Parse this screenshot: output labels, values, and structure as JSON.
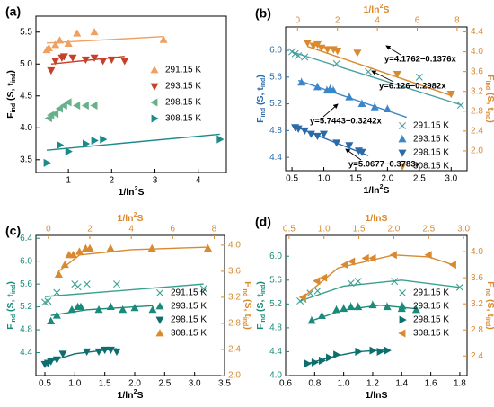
{
  "chart_data": [
    {
      "type": "scatter",
      "label": "(a)",
      "xlabel": [
        "1/ln",
        "2",
        "S"
      ],
      "ylabel": [
        "F",
        "ind",
        " (S, t",
        "ind",
        ")"
      ],
      "xlim": [
        0.25,
        4.65
      ],
      "xticks": [
        1,
        2,
        3,
        4
      ],
      "ylim": [
        3.3,
        5.75
      ],
      "yticks": [
        3.5,
        {
          "value": 4,
          "label": "4.0"
        },
        4.5,
        {
          "value": 5,
          "label": "5.0"
        },
        5.5
      ],
      "ycolor": "#000000",
      "legend": "upper right",
      "series": [
        {
          "name": "291.15 K",
          "color": "#f0a060",
          "marker": "triangle-up",
          "x": [
            0.5,
            0.55,
            0.7,
            0.8,
            1.0,
            1.2,
            1.6,
            3.2
          ],
          "values": [
            5.22,
            5.25,
            5.3,
            5.37,
            5.32,
            5.48,
            5.5,
            5.38
          ],
          "fit_x": [
            0.5,
            3.2
          ],
          "fit_y": [
            5.33,
            5.43
          ]
        },
        {
          "name": "293.15 K",
          "color": "#c8402a",
          "marker": "triangle-down",
          "x": [
            0.6,
            0.7,
            0.85,
            0.9,
            1.1,
            1.4,
            1.6,
            1.8,
            2.0,
            2.3
          ],
          "values": [
            4.9,
            5.05,
            5.1,
            5.12,
            5.1,
            5.07,
            5.1,
            5.05,
            5.07,
            5.05
          ],
          "fit_x": [
            0.6,
            2.3
          ],
          "fit_y": [
            5.0,
            5.12
          ]
        },
        {
          "name": "298.15 K",
          "color": "#66b08a",
          "marker": "triangle-left",
          "x": [
            0.55,
            0.6,
            0.7,
            0.8,
            0.9,
            1.0,
            1.2,
            1.4,
            1.6
          ],
          "values": [
            4.15,
            4.2,
            4.22,
            4.3,
            4.35,
            4.4,
            4.35,
            4.35,
            4.35
          ]
        },
        {
          "name": "308.15 K",
          "color": "#1a8a8a",
          "marker": "triangle-right",
          "x": [
            0.5,
            0.8,
            1.0,
            1.4,
            1.6,
            1.8,
            4.5
          ],
          "values": [
            3.45,
            3.73,
            3.63,
            3.75,
            3.8,
            3.82,
            3.82
          ],
          "fit_x": [
            0.5,
            4.5
          ],
          "fit_y": [
            3.65,
            3.9
          ]
        }
      ]
    },
    {
      "type": "scatter",
      "label": "(b)",
      "xlabel": [
        "1/ln",
        "2",
        "S"
      ],
      "x2label": [
        "1/ln",
        "2",
        "S"
      ],
      "ylabel": [
        "F",
        "ind",
        " (S, t",
        "ind",
        ")"
      ],
      "y2label": [
        "F",
        "ind",
        " (S, t",
        "ind",
        ")"
      ],
      "xlim": [
        0.4,
        3.25
      ],
      "xticks": [
        0.5,
        {
          "value": 1,
          "label": "1.0"
        },
        1.5,
        {
          "value": 2,
          "label": "2.0"
        },
        2.5,
        {
          "value": 3,
          "label": "3.0"
        }
      ],
      "x2lim": [
        -0.6,
        8.5
      ],
      "x2ticks": [
        0,
        2,
        4,
        6,
        8
      ],
      "ylim": [
        4.2,
        6.35
      ],
      "yticks": [
        4.4,
        4.8,
        5.2,
        5.6,
        {
          "value": 6,
          "label": "6.0"
        }
      ],
      "y2lim": [
        1.6,
        4.5
      ],
      "y2ticks": [
        {
          "value": 2,
          "label": "2.0"
        },
        2.4,
        2.8,
        3.2,
        3.6,
        {
          "value": 4,
          "label": "4.0"
        },
        4.4
      ],
      "ycolor": "#2a6aa8",
      "y2color": "#d98a30",
      "legend": "lower right",
      "annotations": [
        "y=4.1762−0.1376x",
        "y=6.126−0.2982x",
        "y=5.7443−0.3242x",
        "y=5.0677−0.3783x"
      ],
      "series": [
        {
          "name": "291.15 K",
          "color": "#4a9fa0",
          "marker": "x",
          "x": [
            0.5,
            0.55,
            0.6,
            0.7,
            1.2,
            1.7,
            2.5,
            3.15
          ],
          "values": [
            5.98,
            5.95,
            5.92,
            5.9,
            5.8,
            5.68,
            5.6,
            5.18
          ],
          "fit_x": [
            0.5,
            3.15
          ],
          "fit_y": [
            5.977,
            5.187
          ]
        },
        {
          "name": "293.15 K",
          "color": "#3a86c8",
          "marker": "half-triangle",
          "x": [
            0.65,
            0.9,
            1.05,
            1.1,
            1.15,
            1.4,
            1.6,
            1.8,
            2.0
          ],
          "values": [
            5.52,
            5.45,
            5.4,
            5.42,
            5.4,
            5.3,
            5.2,
            5.15,
            5.12
          ],
          "fit_x": [
            0.6,
            2.3
          ],
          "fit_y": [
            5.55,
            4.999
          ]
        },
        {
          "name": "298.15 K",
          "color": "#2a6aa8",
          "marker": "triangle-down",
          "x": [
            0.55,
            0.6,
            0.7,
            0.8,
            0.9,
            1.0,
            1.2,
            1.4,
            1.55,
            1.6
          ],
          "values": [
            4.85,
            4.83,
            4.8,
            4.75,
            4.72,
            4.75,
            4.62,
            4.58,
            4.5,
            4.48
          ],
          "fit_x": [
            0.5,
            1.7
          ],
          "fit_y": [
            4.879,
            4.425
          ]
        },
        {
          "name": "308.15 K",
          "color": "#d98a30",
          "marker": "triangle-down",
          "axis": "y2",
          "x": [
            0.5,
            0.8,
            1.0,
            1.2,
            1.5,
            1.8,
            2.0,
            3.0,
            5.0,
            7.7
          ],
          "values": [
            4.18,
            4.12,
            4.15,
            4.08,
            4.05,
            4.05,
            4.02,
            3.98,
            3.55,
            3.15
          ],
          "fit_x": [
            0.5,
            7.7
          ],
          "fit_y": [
            4.107,
            3.117
          ]
        }
      ]
    },
    {
      "type": "scatter",
      "label": "(c)",
      "xlabel": [
        "1/ln",
        "2",
        "S"
      ],
      "x2label": [
        "1/ln",
        "2",
        "S"
      ],
      "ylabel": [
        "F",
        "ind",
        " (S, t",
        "ind",
        ")"
      ],
      "y2label": [
        "F",
        "ind",
        " (S, t",
        "ind",
        ")"
      ],
      "xlim": [
        0.35,
        3.5
      ],
      "xticks": [
        0.5,
        {
          "value": 1,
          "label": "1.0"
        },
        1.5,
        {
          "value": 2,
          "label": "2.0"
        },
        2.5,
        {
          "value": 3,
          "label": "3.0"
        },
        3.5
      ],
      "x2lim": [
        -0.6,
        8.5
      ],
      "x2ticks": [
        0,
        2,
        4,
        6,
        8
      ],
      "ylim": [
        4.0,
        6.45
      ],
      "yticks": [
        4.4,
        4.8,
        5.2,
        5.6,
        {
          "value": 6,
          "label": "6.0"
        },
        6.4
      ],
      "y2lim": [
        2.0,
        4.15
      ],
      "y2ticks": [
        {
          "value": 2,
          "label": "2.0"
        },
        2.4,
        2.8,
        3.2,
        3.6,
        {
          "value": 4,
          "label": "4.0"
        }
      ],
      "ycolor": "#1a8a7a",
      "y2color": "#d98a30",
      "legend": "center right",
      "series": [
        {
          "name": "291.15 K",
          "color": "#3aa08f",
          "marker": "x",
          "x": [
            0.5,
            0.55,
            0.7,
            1.0,
            1.05,
            1.2,
            1.7,
            3.15
          ],
          "values": [
            5.28,
            5.3,
            5.45,
            5.6,
            5.55,
            5.6,
            5.6,
            5.52
          ],
          "fit_x": [
            0.5,
            3.15
          ],
          "fit_y": [
            5.38,
            5.6
          ]
        },
        {
          "name": "293.15 K",
          "color": "#1a8a7a",
          "marker": "triangle-up",
          "x": [
            0.6,
            0.7,
            0.95,
            1.05,
            1.1,
            1.4,
            1.6,
            1.8,
            2.0,
            2.3
          ],
          "values": [
            4.95,
            5.05,
            5.15,
            5.2,
            5.2,
            5.15,
            5.2,
            5.15,
            5.18,
            5.15
          ],
          "fit_x": [
            0.6,
            1.2,
            2.3
          ],
          "fit_y": [
            5.05,
            5.15,
            5.22
          ]
        },
        {
          "name": "298.15 K",
          "color": "#0e6e6e",
          "marker": "triangle-down",
          "x": [
            0.5,
            0.55,
            0.6,
            0.7,
            0.8,
            1.2,
            1.4,
            1.5,
            1.6,
            1.7
          ],
          "values": [
            4.2,
            4.22,
            4.25,
            4.28,
            4.38,
            4.42,
            4.42,
            4.45,
            4.45,
            4.42
          ],
          "fit_x": [
            0.5,
            1.0,
            1.7
          ],
          "fit_y": [
            4.22,
            4.38,
            4.47
          ]
        },
        {
          "name": "308.15 K",
          "color": "#d98a30",
          "marker": "triangle-up",
          "axis": "y2",
          "x": [
            0.5,
            0.8,
            1.0,
            1.2,
            1.5,
            1.8,
            2.0,
            3.0,
            5.0,
            7.7
          ],
          "values": [
            3.55,
            3.7,
            3.85,
            3.85,
            3.9,
            3.95,
            3.95,
            3.95,
            3.95,
            3.95
          ],
          "fit_x": [
            0.5,
            1.5,
            4,
            7.7
          ],
          "fit_y": [
            3.6,
            3.85,
            3.93,
            3.97
          ]
        }
      ]
    },
    {
      "type": "scatter",
      "label": "(d)",
      "xlabel": [
        "1/lnS"
      ],
      "x2label": [
        "1/lnS"
      ],
      "ylabel": [
        "F",
        "ind",
        " (S, t",
        "ind",
        ")"
      ],
      "y2label": [
        "F",
        "ind",
        " (S, t",
        "ind",
        ")"
      ],
      "xlim": [
        0.6,
        1.85
      ],
      "xticks": [
        0.6,
        0.8,
        {
          "value": 1,
          "label": "1.0"
        },
        1.2,
        1.4,
        1.6,
        1.8
      ],
      "x2lim": [
        0.45,
        3.05
      ],
      "x2ticks": [
        0.5,
        {
          "value": 1,
          "label": "1.0"
        },
        1.5,
        {
          "value": 2,
          "label": "2.0"
        },
        2.5,
        {
          "value": 3,
          "label": "3.0"
        }
      ],
      "ylim": [
        4.0,
        6.35
      ],
      "yticks": [
        {
          "value": 4,
          "label": "4.0"
        },
        4.4,
        4.8,
        5.2,
        5.6,
        {
          "value": 6,
          "label": "6.0"
        }
      ],
      "y2lim": [
        2.1,
        4.25
      ],
      "y2ticks": [
        2.4,
        2.8,
        3.2,
        3.6,
        {
          "value": 4,
          "label": "4.0"
        }
      ],
      "ycolor": "#1a8a7a",
      "y2color": "#d98a30",
      "legend": "center right",
      "series": [
        {
          "name": "291.15 K",
          "color": "#3aa08f",
          "marker": "x",
          "x": [
            0.7,
            0.72,
            0.77,
            0.82,
            1.05,
            1.1,
            1.35,
            1.8
          ],
          "values": [
            5.25,
            5.28,
            5.38,
            5.42,
            5.55,
            5.58,
            5.58,
            5.48
          ],
          "fit_x": [
            0.7,
            1.0,
            1.4,
            1.8
          ],
          "fit_y": [
            5.25,
            5.5,
            5.6,
            5.48
          ]
        },
        {
          "name": "293.15 K",
          "color": "#1a8a7a",
          "marker": "half-triangle",
          "x": [
            0.78,
            0.85,
            0.95,
            1.0,
            1.05,
            1.1,
            1.2,
            1.3,
            1.4,
            1.5
          ],
          "values": [
            4.92,
            5.0,
            5.1,
            5.12,
            5.15,
            5.15,
            5.18,
            5.15,
            5.12,
            5.1
          ],
          "fit_x": [
            0.78,
            1.0,
            1.25,
            1.5
          ],
          "fit_y": [
            4.92,
            5.1,
            5.18,
            5.12
          ]
        },
        {
          "name": "298.15 K",
          "color": "#0e6e6e",
          "marker": "triangle-right",
          "x": [
            0.75,
            0.8,
            0.85,
            0.9,
            0.95,
            1.1,
            1.2,
            1.25,
            1.3
          ],
          "values": [
            4.2,
            4.22,
            4.25,
            4.3,
            4.35,
            4.4,
            4.42,
            4.4,
            4.42
          ],
          "fit_x": [
            0.75,
            0.95,
            1.1,
            1.3
          ],
          "fit_y": [
            4.2,
            4.33,
            4.4,
            4.43
          ]
        },
        {
          "name": "308.15 K",
          "color": "#d98a30",
          "marker": "triangle-left",
          "axis": "y2",
          "x": [
            0.7,
            0.9,
            1.0,
            1.3,
            1.4,
            1.6,
            1.7,
            2.0,
            2.5,
            2.85
          ],
          "values": [
            3.3,
            3.55,
            3.6,
            3.8,
            3.85,
            3.9,
            3.9,
            3.95,
            3.95,
            3.8
          ],
          "fit_x": [
            0.7,
            1.2,
            2.0,
            2.5,
            2.85
          ],
          "fit_y": [
            3.3,
            3.75,
            3.95,
            3.92,
            3.8
          ]
        }
      ]
    }
  ]
}
